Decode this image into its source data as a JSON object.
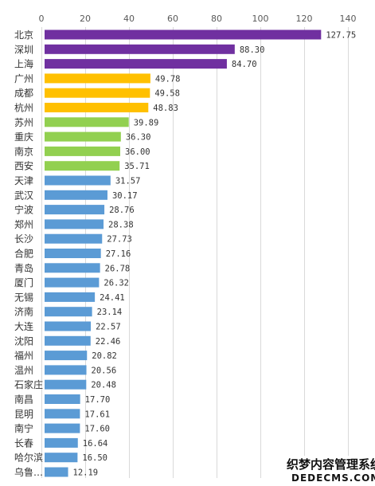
{
  "chart_data": {
    "type": "bar",
    "orientation": "horizontal",
    "title": "",
    "xlabel": "",
    "ylabel": "",
    "xlim": [
      0,
      140
    ],
    "xticks": [
      0,
      20,
      40,
      60,
      80,
      100,
      120,
      140
    ],
    "x_axis_position": "top",
    "grid": true,
    "legend": "none",
    "categories": [
      "北京",
      "深圳",
      "上海",
      "广州",
      "成都",
      "杭州",
      "苏州",
      "重庆",
      "南京",
      "西安",
      "天津",
      "武汉",
      "宁波",
      "郑州",
      "长沙",
      "合肥",
      "青岛",
      "厦门",
      "无锡",
      "济南",
      "大连",
      "沈阳",
      "福州",
      "温州",
      "石家庄",
      "南昌",
      "昆明",
      "南宁",
      "长春",
      "哈尔滨",
      "乌鲁…"
    ],
    "values": [
      127.75,
      88.3,
      84.7,
      49.78,
      49.58,
      48.83,
      39.89,
      36.3,
      36.0,
      35.71,
      31.57,
      30.17,
      28.76,
      28.38,
      27.73,
      27.16,
      26.78,
      26.32,
      24.41,
      23.14,
      22.57,
      22.46,
      20.82,
      20.56,
      20.48,
      17.7,
      17.61,
      17.6,
      16.64,
      16.5,
      12.19
    ],
    "value_labels": [
      "127.75",
      "88.30",
      "84.70",
      "49.78",
      "49.58",
      "48.83",
      "39.89",
      "36.30",
      "36.00",
      "35.71",
      "31.57",
      "30.17",
      "28.76",
      "28.38",
      "27.73",
      "27.16",
      "26.78",
      "26.32",
      "24.41",
      "23.14",
      "22.57",
      "22.46",
      "20.82",
      "20.56",
      "20.48",
      "17.70",
      "17.61",
      "17.60",
      "16.64",
      "16.50",
      "12.19"
    ],
    "bar_colors": [
      "#7030a0",
      "#7030a0",
      "#7030a0",
      "#ffc000",
      "#ffc000",
      "#ffc000",
      "#92d050",
      "#92d050",
      "#92d050",
      "#92d050",
      "#5b9bd5",
      "#5b9bd5",
      "#5b9bd5",
      "#5b9bd5",
      "#5b9bd5",
      "#5b9bd5",
      "#5b9bd5",
      "#5b9bd5",
      "#5b9bd5",
      "#5b9bd5",
      "#5b9bd5",
      "#5b9bd5",
      "#5b9bd5",
      "#5b9bd5",
      "#5b9bd5",
      "#5b9bd5",
      "#5b9bd5",
      "#5b9bd5",
      "#5b9bd5",
      "#5b9bd5",
      "#5b9bd5"
    ]
  },
  "watermark": {
    "line1": "织梦内容管理系统",
    "line2": "DEDECMS.COM"
  }
}
